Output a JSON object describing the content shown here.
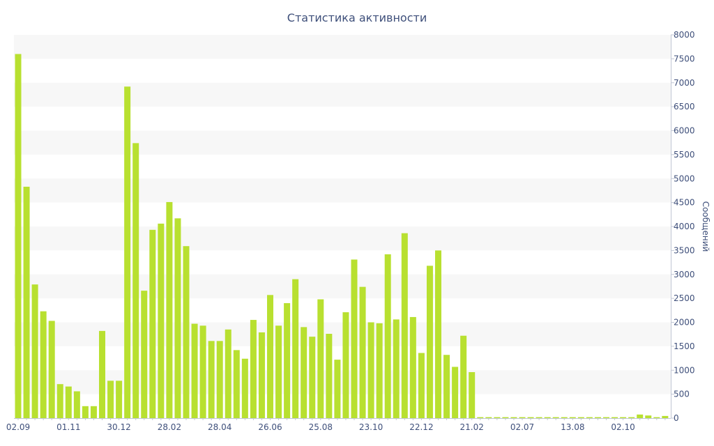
{
  "chart_data": {
    "type": "bar",
    "title": "Статистика активности",
    "xlabel": "",
    "ylabel": "Сообщений",
    "ylim": [
      0,
      8000
    ],
    "y_axis_side": "right",
    "y_ticks": [
      0,
      500,
      1000,
      1500,
      2000,
      2500,
      3000,
      3500,
      4000,
      4500,
      5000,
      5500,
      6000,
      6500,
      7000,
      7500,
      8000
    ],
    "grid": "alternating horizontal bands",
    "legend": "none",
    "bar_color": "#b8e030",
    "band_color": "#f7f7f7",
    "text_color": "#3e4f7a",
    "x_tick_labels": [
      {
        "index": 0,
        "label": "02.09"
      },
      {
        "index": 6,
        "label": "01.11"
      },
      {
        "index": 12,
        "label": "30.12"
      },
      {
        "index": 18,
        "label": "28.02"
      },
      {
        "index": 24,
        "label": "28.04"
      },
      {
        "index": 30,
        "label": "26.06"
      },
      {
        "index": 36,
        "label": "25.08"
      },
      {
        "index": 42,
        "label": "23.10"
      },
      {
        "index": 48,
        "label": "22.12"
      },
      {
        "index": 54,
        "label": "21.02"
      },
      {
        "index": 60,
        "label": "02.07"
      },
      {
        "index": 66,
        "label": "13.08"
      },
      {
        "index": 72,
        "label": "02.10"
      }
    ],
    "values": [
      7600,
      4830,
      2790,
      2230,
      2030,
      710,
      660,
      560,
      250,
      250,
      1820,
      780,
      780,
      6920,
      5740,
      2660,
      3930,
      4060,
      4510,
      4170,
      3590,
      1970,
      1930,
      1610,
      1610,
      1850,
      1420,
      1240,
      2050,
      1790,
      2570,
      1930,
      2400,
      2900,
      1900,
      1700,
      2480,
      1760,
      1220,
      2210,
      3310,
      2740,
      2000,
      1980,
      3420,
      2060,
      3860,
      2110,
      1360,
      3180,
      3500,
      1320,
      1070,
      1720,
      960,
      20,
      20,
      20,
      20,
      20,
      20,
      20,
      20,
      20,
      20,
      20,
      20,
      20,
      20,
      20,
      20,
      20,
      20,
      20,
      75,
      55,
      20,
      45
    ]
  }
}
